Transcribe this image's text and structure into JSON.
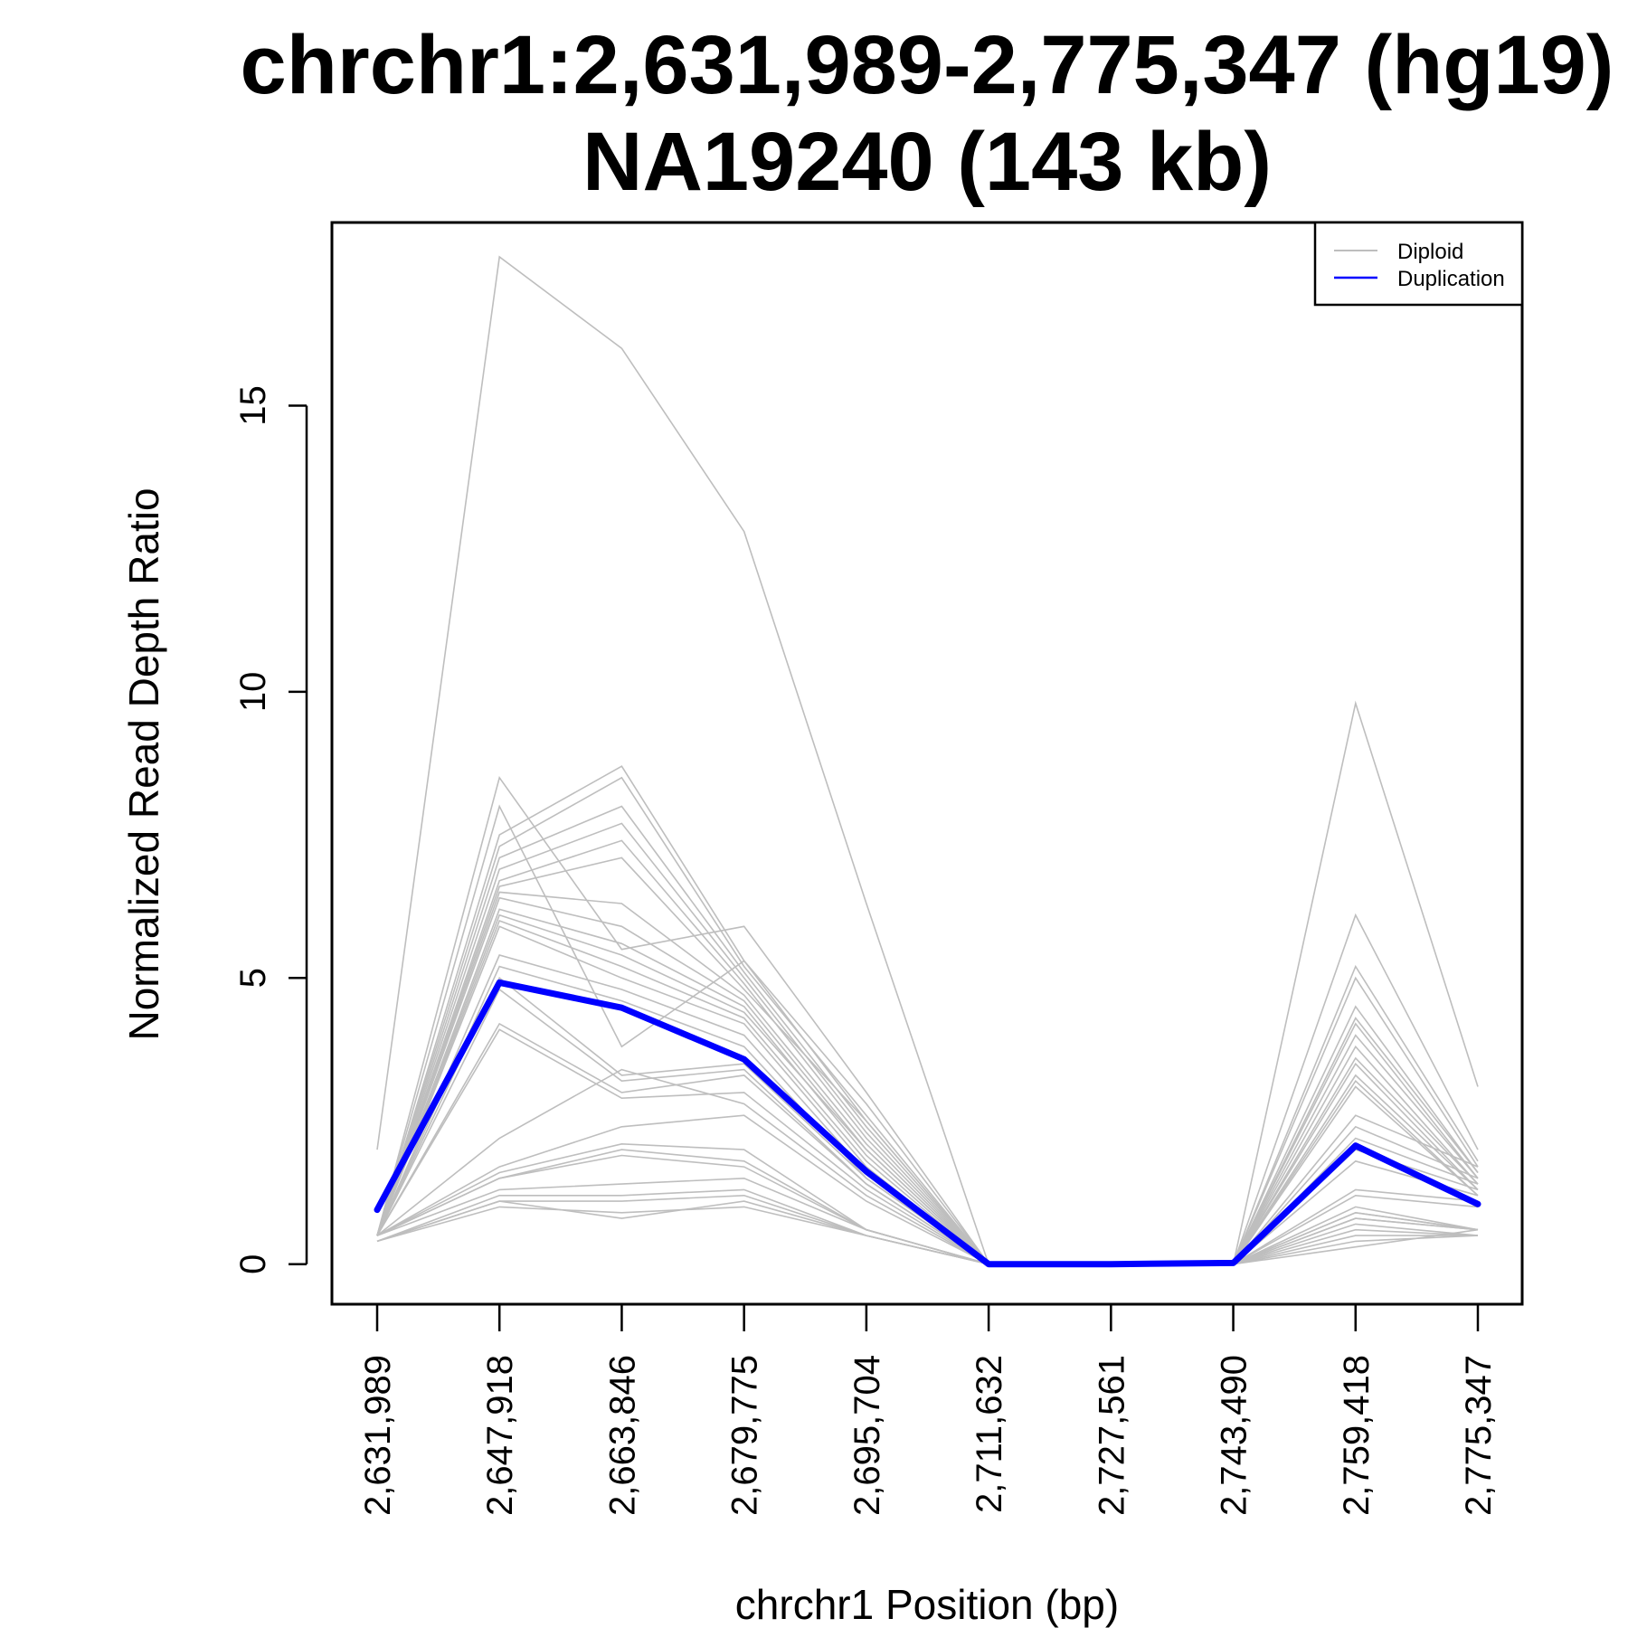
{
  "chart_data": {
    "type": "line",
    "title_line1": "chrchr1:2,631,989-2,775,347 (hg19)",
    "title_line2": "NA19240 (143 kb)",
    "xlabel": "chrchr1 Position (bp)",
    "ylabel": "Normalized Read Depth Ratio",
    "x_ticks": [
      "2,631,989",
      "2,647,918",
      "2,663,846",
      "2,679,775",
      "2,695,704",
      "2,711,632",
      "2,727,561",
      "2,743,490",
      "2,759,418",
      "2,775,347"
    ],
    "y_ticks": [
      "0",
      "5",
      "10",
      "15"
    ],
    "y_tick_values": [
      0,
      5,
      10,
      15
    ],
    "ylim": [
      -0.7,
      18.2
    ],
    "legend": {
      "position": "top-right",
      "entries": [
        {
          "label": "Diploid",
          "color": "#bebebe"
        },
        {
          "label": "Duplication",
          "color": "#0000ff"
        }
      ]
    },
    "duplication": {
      "name": "Duplication",
      "color": "#0000ff",
      "values": [
        0.95,
        4.92,
        4.48,
        3.58,
        1.62,
        0.0,
        0.0,
        0.02,
        2.07,
        1.05
      ]
    },
    "diploid_color": "#bebebe",
    "diploid": [
      [
        2.0,
        17.6,
        16.0,
        12.8,
        6.3,
        0.0,
        0.0,
        0.0,
        9.8,
        3.1
      ],
      [
        0.5,
        8.5,
        5.5,
        5.9,
        3.0,
        0.0,
        0.0,
        0.0,
        6.1,
        2.0
      ],
      [
        0.5,
        8.0,
        3.8,
        5.3,
        2.8,
        0.0,
        0.0,
        0.0,
        5.2,
        1.8
      ],
      [
        0.5,
        7.5,
        8.7,
        5.3,
        2.5,
        0.0,
        0.0,
        0.0,
        5.0,
        1.7
      ],
      [
        0.5,
        7.3,
        8.5,
        5.2,
        2.6,
        0.0,
        0.0,
        0.0,
        4.5,
        1.6
      ],
      [
        0.5,
        7.1,
        8.0,
        5.1,
        2.4,
        0.0,
        0.0,
        0.0,
        4.3,
        1.6
      ],
      [
        0.5,
        6.9,
        7.7,
        5.0,
        2.3,
        0.0,
        0.0,
        0.0,
        4.2,
        1.5
      ],
      [
        0.5,
        6.7,
        7.4,
        4.9,
        2.2,
        0.0,
        0.0,
        0.0,
        4.0,
        1.5
      ],
      [
        0.5,
        6.6,
        7.1,
        4.8,
        2.5,
        0.0,
        0.0,
        0.0,
        3.8,
        1.4
      ],
      [
        0.5,
        6.5,
        6.3,
        4.7,
        2.1,
        0.0,
        0.0,
        0.0,
        3.6,
        1.4
      ],
      [
        0.5,
        6.4,
        5.9,
        4.6,
        2.0,
        0.0,
        0.0,
        0.0,
        3.5,
        1.3
      ],
      [
        0.5,
        6.2,
        5.6,
        4.5,
        1.9,
        0.0,
        0.0,
        0.0,
        3.3,
        1.3
      ],
      [
        0.5,
        6.1,
        5.4,
        4.4,
        2.0,
        0.0,
        0.0,
        0.0,
        3.2,
        1.2
      ],
      [
        0.5,
        6.0,
        5.2,
        4.3,
        1.8,
        0.0,
        0.0,
        0.0,
        3.1,
        1.2
      ],
      [
        0.5,
        5.9,
        5.0,
        4.2,
        1.7,
        0.0,
        0.0,
        0.0,
        2.6,
        1.7
      ],
      [
        0.5,
        5.4,
        4.8,
        4.0,
        1.6,
        0.0,
        0.0,
        0.0,
        2.4,
        1.5
      ],
      [
        0.5,
        5.2,
        4.6,
        3.8,
        1.5,
        0.0,
        0.0,
        0.0,
        2.2,
        1.4
      ],
      [
        0.5,
        5.0,
        3.3,
        3.5,
        1.5,
        0.0,
        0.0,
        0.0,
        2.0,
        1.3
      ],
      [
        0.5,
        4.8,
        3.2,
        3.4,
        1.4,
        0.0,
        0.0,
        0.0,
        1.8,
        1.2
      ],
      [
        0.5,
        4.2,
        3.0,
        3.3,
        1.4,
        0.0,
        0.0,
        0.0,
        1.3,
        1.1
      ],
      [
        0.5,
        4.1,
        2.9,
        3.0,
        1.3,
        0.0,
        0.0,
        0.0,
        1.2,
        1.0
      ],
      [
        0.5,
        2.2,
        3.4,
        2.8,
        1.2,
        0.0,
        0.0,
        0.0,
        1.0,
        0.6
      ],
      [
        0.5,
        1.7,
        2.4,
        2.6,
        1.1,
        0.0,
        0.0,
        0.0,
        0.9,
        0.6
      ],
      [
        0.5,
        1.6,
        2.1,
        2.0,
        0.6,
        0.0,
        0.0,
        0.0,
        0.9,
        0.6
      ],
      [
        0.5,
        1.5,
        2.0,
        1.8,
        0.6,
        0.0,
        0.0,
        0.0,
        0.8,
        0.6
      ],
      [
        0.5,
        1.5,
        1.9,
        1.7,
        0.6,
        0.0,
        0.0,
        0.0,
        0.8,
        0.6
      ],
      [
        0.5,
        1.3,
        1.4,
        1.5,
        0.6,
        0.0,
        0.0,
        0.0,
        0.7,
        0.5
      ],
      [
        0.4,
        1.2,
        1.2,
        1.3,
        0.5,
        0.0,
        0.0,
        0.0,
        0.6,
        0.5
      ],
      [
        0.4,
        1.1,
        1.1,
        1.2,
        0.5,
        0.0,
        0.0,
        0.0,
        0.5,
        0.5
      ],
      [
        0.4,
        1.0,
        0.9,
        1.0,
        0.5,
        0.0,
        0.0,
        0.0,
        0.4,
        0.5
      ],
      [
        0.4,
        1.1,
        0.8,
        1.1,
        0.5,
        0.0,
        0.0,
        0.0,
        0.3,
        0.6
      ]
    ]
  }
}
